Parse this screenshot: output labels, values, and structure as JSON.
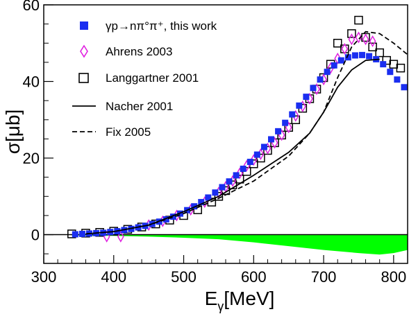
{
  "chart_data": {
    "type": "scatter",
    "xlabel": "E",
    "xlabel_sub": "γ",
    "xlabel_unit": "[MeV]",
    "ylabel": "σ[μb]",
    "xlim": [
      300,
      820
    ],
    "ylim": [
      -7.5,
      60
    ],
    "x_ticks": [
      300,
      400,
      500,
      600,
      700,
      800
    ],
    "y_ticks": [
      0,
      20,
      40,
      60
    ],
    "legend_placement": "top-left",
    "colors": {
      "this_work": "#1a2ef0",
      "ahrens": "#e020e0",
      "langgartner": "#000000",
      "systematics": "#00ff00"
    },
    "series": [
      {
        "name": "γp→nπ°π⁺, this work",
        "marker": "filled-square",
        "x": [
          345,
          355,
          365,
          375,
          385,
          395,
          405,
          415,
          425,
          435,
          445,
          455,
          465,
          475,
          485,
          495,
          505,
          515,
          525,
          535,
          545,
          555,
          565,
          575,
          585,
          595,
          605,
          615,
          625,
          635,
          645,
          655,
          665,
          675,
          685,
          695,
          705,
          715,
          725,
          735,
          745,
          755,
          765,
          775,
          785,
          795,
          805,
          815
        ],
        "y": [
          0.1,
          0.2,
          0.3,
          0.4,
          0.5,
          0.7,
          0.9,
          1.2,
          1.5,
          1.9,
          2.3,
          2.8,
          3.4,
          4.0,
          4.7,
          5.5,
          6.4,
          7.4,
          8.5,
          9.7,
          11.0,
          12.4,
          13.9,
          15.5,
          17.2,
          19.0,
          20.9,
          22.9,
          24.9,
          27.0,
          29.2,
          31.4,
          33.7,
          36.0,
          38.3,
          40.5,
          42.5,
          44.2,
          45.5,
          46.3,
          46.8,
          46.9,
          46.6,
          45.8,
          44.5,
          42.5,
          40.5,
          38.5
        ]
      },
      {
        "name": "Ahrens 2003",
        "marker": "open-diamond",
        "x": [
          390,
          410,
          450,
          470,
          490,
          510,
          530,
          550,
          560,
          570,
          580,
          590,
          600,
          610,
          620,
          630,
          640,
          650,
          660,
          670,
          680,
          690,
          700,
          710,
          720,
          730,
          740,
          750,
          760,
          770
        ],
        "y": [
          -0.5,
          -0.5,
          2.5,
          3.5,
          5.0,
          6.5,
          8.5,
          11.0,
          12.5,
          14.0,
          16.0,
          18.0,
          19.5,
          21.0,
          22.5,
          24.0,
          26.0,
          28.0,
          31.0,
          33.5,
          35.5,
          38.0,
          40.5,
          43.5,
          46.0,
          48.5,
          51.0,
          51.5,
          51.0,
          50.5
        ]
      },
      {
        "name": "Langgartner 2001",
        "marker": "open-square",
        "x": [
          340,
          360,
          380,
          400,
          420,
          440,
          460,
          480,
          500,
          520,
          540,
          550,
          560,
          570,
          580,
          590,
          600,
          610,
          620,
          630,
          640,
          650,
          660,
          670,
          680,
          690,
          700,
          710,
          720,
          730,
          740,
          750,
          760,
          770,
          780,
          790,
          800,
          810
        ],
        "y": [
          0.2,
          0.4,
          0.6,
          0.9,
          1.4,
          2.0,
          2.8,
          3.8,
          5.0,
          6.5,
          8.5,
          10.0,
          11.5,
          13.0,
          14.5,
          16.5,
          18.5,
          20.0,
          22.0,
          24.0,
          26.0,
          28.0,
          30.0,
          33.0,
          35.5,
          38.0,
          41.0,
          44.5,
          50.0,
          48.5,
          52.5,
          56.0,
          51.5,
          49.0,
          47.5,
          45.5,
          44.5,
          43.5
        ]
      },
      {
        "name": "Nacher 2001",
        "line": "solid",
        "x": [
          360,
          400,
          450,
          500,
          550,
          600,
          650,
          680,
          700,
          720,
          740,
          760,
          780
        ],
        "y": [
          0.2,
          0.8,
          2.5,
          6.0,
          10.0,
          15.5,
          21.5,
          26.5,
          32.0,
          38.5,
          43.0,
          45.5,
          45.8
        ]
      },
      {
        "name": "Fix 2005",
        "line": "dashed",
        "x": [
          360,
          400,
          450,
          500,
          550,
          600,
          650,
          680,
          700,
          720,
          740,
          760,
          780,
          800,
          820
        ],
        "y": [
          0.2,
          0.8,
          2.5,
          5.5,
          9.5,
          14.0,
          20.5,
          26.5,
          32.0,
          41.0,
          49.0,
          53.0,
          52.5,
          50.0,
          47.0
        ]
      },
      {
        "name": "systematic errors",
        "band": "filled",
        "x": [
          340,
          400,
          450,
          500,
          550,
          600,
          650,
          700,
          750,
          780,
          800,
          820
        ],
        "y": [
          -0.2,
          -0.3,
          -0.5,
          -0.8,
          -1.2,
          -2.0,
          -3.0,
          -4.0,
          -4.8,
          -5.2,
          -4.8,
          -4.0
        ]
      }
    ]
  }
}
